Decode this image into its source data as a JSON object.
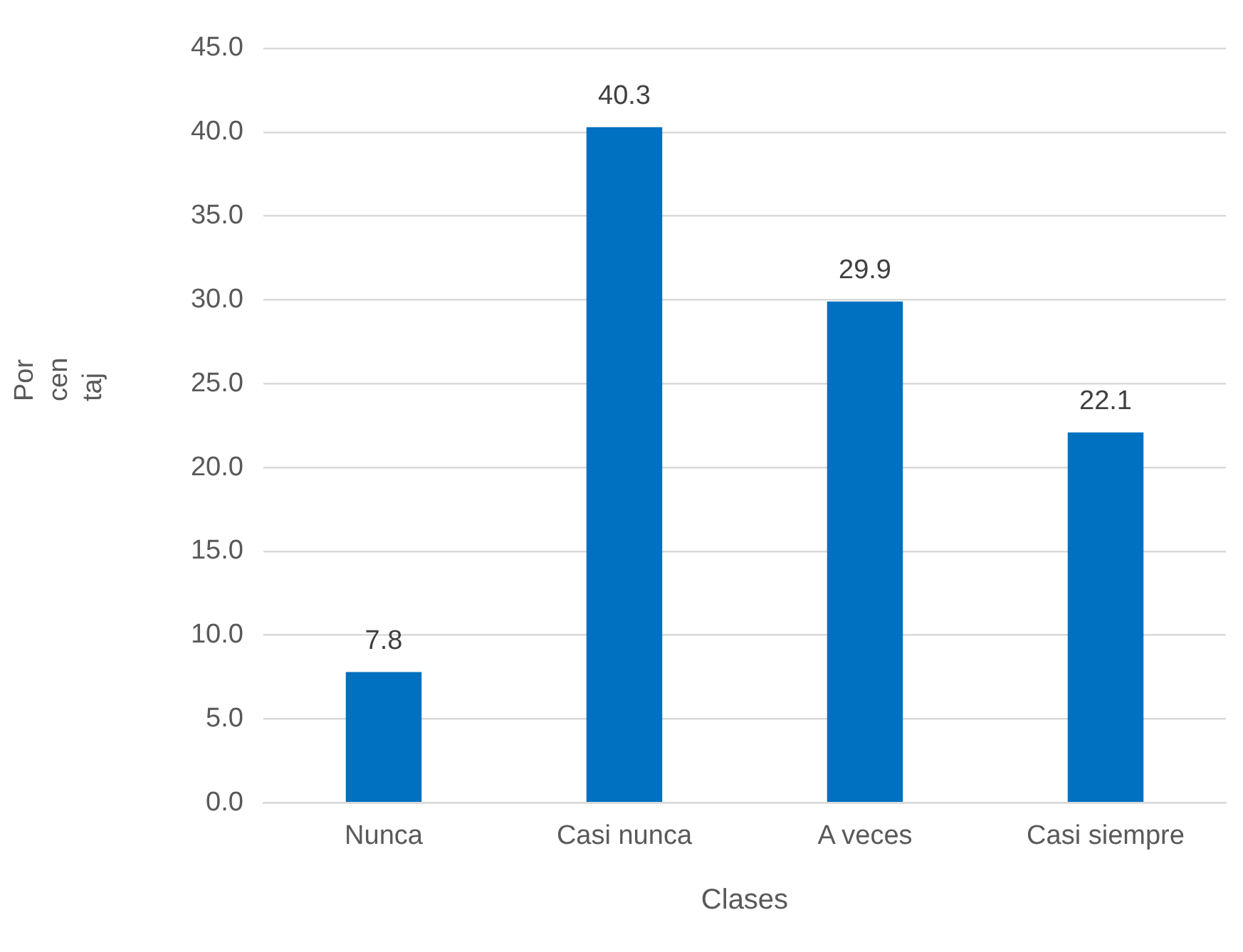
{
  "chart_data": {
    "type": "bar",
    "xlabel": "Clases",
    "ylabel": "Porcentaj",
    "categories": [
      "Nunca",
      "Casi nunca",
      "A veces",
      "Casi siempre"
    ],
    "values": [
      7.8,
      40.3,
      29.9,
      22.1
    ],
    "color": "#0070c0",
    "ylim": [
      0,
      45
    ],
    "yticks": [
      {
        "value": 0,
        "label": "0.0"
      },
      {
        "value": 5,
        "label": "5.0"
      },
      {
        "value": 10,
        "label": "10.0"
      },
      {
        "value": 15,
        "label": "15.0"
      },
      {
        "value": 20,
        "label": "20.0"
      },
      {
        "value": 25,
        "label": "25.0"
      },
      {
        "value": 30,
        "label": "30.0"
      },
      {
        "value": 35,
        "label": "35.0"
      },
      {
        "value": 40,
        "label": "40.0"
      },
      {
        "value": 45,
        "label": "45.0"
      }
    ],
    "grid": "y",
    "data_labels": true,
    "legend": false
  }
}
